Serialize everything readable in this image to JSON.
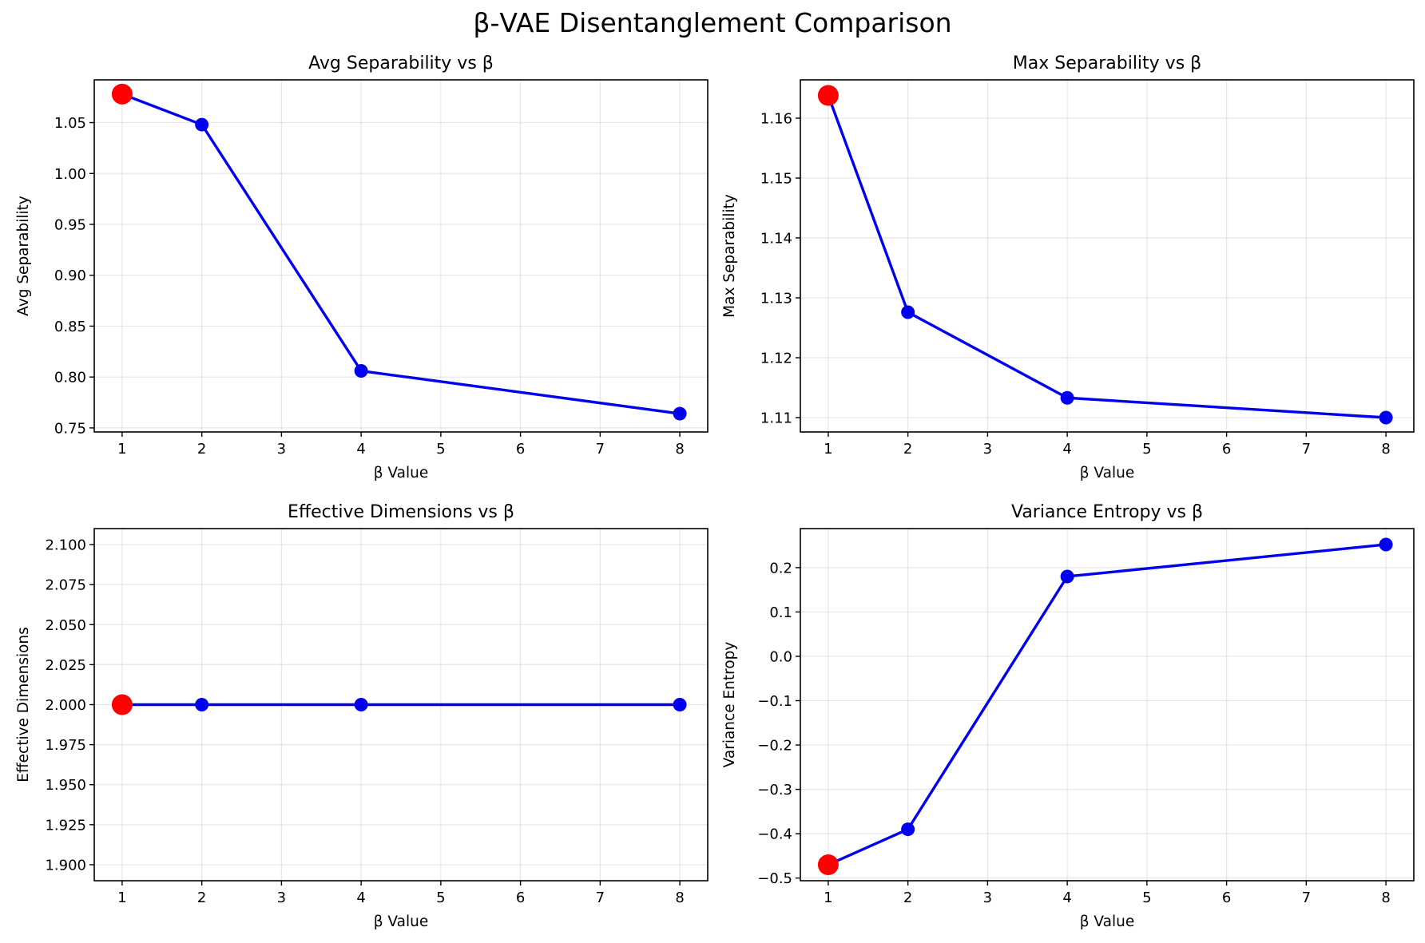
{
  "figure_title": "β-VAE Disentanglement Comparison",
  "colors": {
    "line": "#0000ee",
    "marker": "#0000ee",
    "highlight": "#ff0000",
    "grid": "#b0b0b0"
  },
  "chart_data": [
    {
      "type": "line",
      "title": "Avg Separability vs β",
      "xlabel": "β Value",
      "ylabel": "Avg Separability",
      "x": [
        1,
        2,
        4,
        8
      ],
      "y": [
        1.078,
        1.048,
        0.806,
        0.764
      ],
      "highlight_index": 0,
      "xlim": [
        0.65,
        8.35
      ],
      "ylim": [
        0.746,
        1.092
      ],
      "xticks": [
        1,
        2,
        3,
        4,
        5,
        6,
        7,
        8
      ],
      "yticks": [
        0.75,
        0.8,
        0.85,
        0.9,
        0.95,
        1.0,
        1.05
      ],
      "tick_decimals": 2,
      "grid": true
    },
    {
      "type": "line",
      "title": "Max Separability vs β",
      "xlabel": "β Value",
      "ylabel": "Max Separability",
      "x": [
        1,
        2,
        4,
        8
      ],
      "y": [
        1.1638,
        1.1276,
        1.1133,
        1.11
      ],
      "highlight_index": 0,
      "xlim": [
        0.65,
        8.35
      ],
      "ylim": [
        1.1076,
        1.1664
      ],
      "xticks": [
        1,
        2,
        3,
        4,
        5,
        6,
        7,
        8
      ],
      "yticks": [
        1.11,
        1.12,
        1.13,
        1.14,
        1.15,
        1.16
      ],
      "tick_decimals": 2,
      "grid": true
    },
    {
      "type": "line",
      "title": "Effective Dimensions vs β",
      "xlabel": "β Value",
      "ylabel": "Effective Dimensions",
      "x": [
        1,
        2,
        4,
        8
      ],
      "y": [
        2.0,
        2.0,
        2.0,
        2.0
      ],
      "highlight_index": 0,
      "xlim": [
        0.65,
        8.35
      ],
      "ylim": [
        1.89,
        2.11
      ],
      "xticks": [
        1,
        2,
        3,
        4,
        5,
        6,
        7,
        8
      ],
      "yticks": [
        1.9,
        1.925,
        1.95,
        1.975,
        2.0,
        2.025,
        2.05,
        2.075,
        2.1
      ],
      "tick_decimals": 3,
      "grid": true
    },
    {
      "type": "line",
      "title": "Variance Entropy vs β",
      "xlabel": "β Value",
      "ylabel": "Variance Entropy",
      "x": [
        1,
        2,
        4,
        8
      ],
      "y": [
        -0.47,
        -0.39,
        0.18,
        0.252
      ],
      "highlight_index": 0,
      "xlim": [
        0.65,
        8.35
      ],
      "ylim": [
        -0.506,
        0.288
      ],
      "xticks": [
        1,
        2,
        3,
        4,
        5,
        6,
        7,
        8
      ],
      "yticks": [
        -0.5,
        -0.4,
        -0.3,
        -0.2,
        -0.1,
        0.0,
        0.1,
        0.2
      ],
      "tick_decimals": 1,
      "grid": true
    }
  ]
}
